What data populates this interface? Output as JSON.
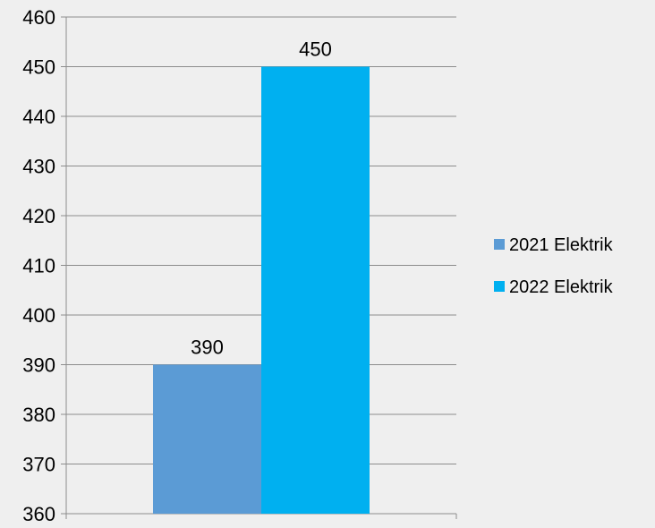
{
  "chart_data": {
    "type": "bar",
    "categories": [
      ""
    ],
    "series": [
      {
        "name": "2021 Elektrik",
        "values": [
          390
        ],
        "color": "#5b9bd5"
      },
      {
        "name": "2022 Elektrik",
        "values": [
          450
        ],
        "color": "#00b0f0"
      }
    ],
    "title": "",
    "xlabel": "",
    "ylabel": "",
    "ylim": [
      360,
      460
    ],
    "yticks": [
      360,
      370,
      380,
      390,
      400,
      410,
      420,
      430,
      440,
      450,
      460
    ],
    "grid": true,
    "legend": "right",
    "data_labels": true
  }
}
